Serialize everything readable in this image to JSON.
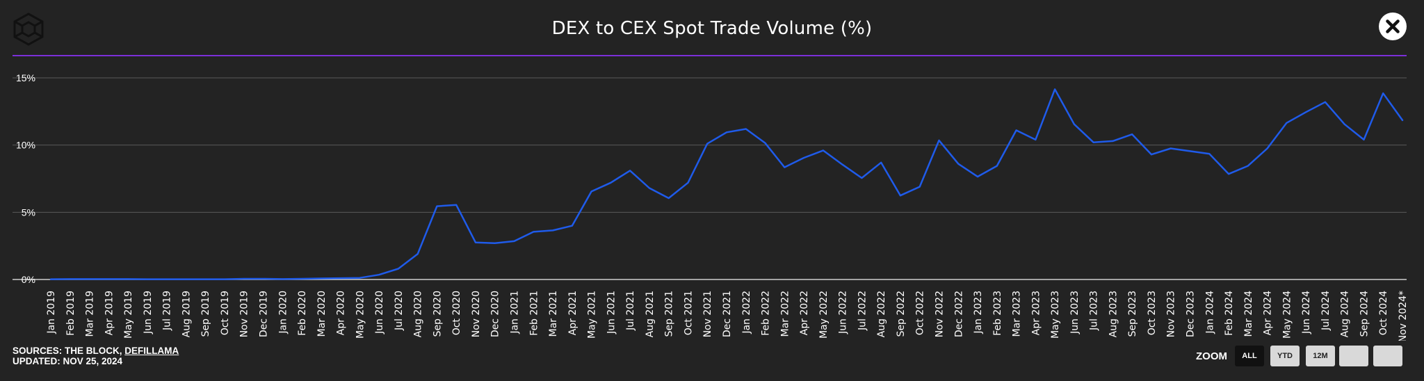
{
  "header": {
    "title": "DEX to CEX Spot Trade Volume (%)"
  },
  "footer": {
    "sources_prefix": "SOURCES: THE BLOCK, ",
    "sources_link": "DEFILLAMA",
    "updated": "UPDATED: NOV 25, 2024"
  },
  "zoom": {
    "label": "ZOOM",
    "buttons": [
      "ALL",
      "YTD",
      "12M",
      "",
      ""
    ],
    "active": "ALL"
  },
  "colors": {
    "background": "#232323",
    "line": "#1f5bea",
    "divider": "#7b2fd9",
    "grid": "#5a5a5a"
  },
  "chart_data": {
    "type": "line",
    "title": "DEX to CEX Spot Trade Volume (%)",
    "ylim": [
      0,
      15
    ],
    "yticks": [
      0,
      5,
      10,
      15
    ],
    "ytick_labels": [
      "0%",
      "5%",
      "10%",
      "15%"
    ],
    "grid": true,
    "categories": [
      "Jan 2019",
      "Feb 2019",
      "Mar 2019",
      "Apr 2019",
      "May 2019",
      "Jun 2019",
      "Jul 2019",
      "Aug 2019",
      "Sep 2019",
      "Oct 2019",
      "Nov 2019",
      "Dec 2019",
      "Jan 2020",
      "Feb 2020",
      "Mar 2020",
      "Apr 2020",
      "May 2020",
      "Jun 2020",
      "Jul 2020",
      "Aug 2020",
      "Sep 2020",
      "Oct 2020",
      "Nov 2020",
      "Dec 2020",
      "Jan 2021",
      "Feb 2021",
      "Mar 2021",
      "Apr 2021",
      "May 2021",
      "Jun 2021",
      "Jul 2021",
      "Aug 2021",
      "Sep 2021",
      "Oct 2021",
      "Nov 2021",
      "Dec 2021",
      "Jan 2022",
      "Feb 2022",
      "Mar 2022",
      "Apr 2022",
      "May 2022",
      "Jun 2022",
      "Jul 2022",
      "Aug 2022",
      "Sep 2022",
      "Oct 2022",
      "Nov 2022",
      "Dec 2022",
      "Jan 2023",
      "Feb 2023",
      "Mar 2023",
      "Apr 2023",
      "May 2023",
      "Jun 2023",
      "Jul 2023",
      "Aug 2023",
      "Sep 2023",
      "Oct 2023",
      "Nov 2023",
      "Dec 2023",
      "Jan 2024",
      "Feb 2024",
      "Mar 2024",
      "Apr 2024",
      "May 2024",
      "Jun 2024",
      "Jul 2024",
      "Aug 2024",
      "Sep 2024",
      "Oct 2024",
      "Nov 2024*"
    ],
    "series": [
      {
        "values": [
          0.02,
          0.03,
          0.03,
          0.03,
          0.03,
          0.02,
          0.02,
          0.02,
          0.02,
          0.02,
          0.05,
          0.05,
          0.03,
          0.05,
          0.08,
          0.1,
          0.12,
          0.35,
          0.8,
          1.9,
          5.45,
          5.55,
          2.75,
          2.7,
          2.85,
          3.55,
          3.65,
          4.0,
          6.55,
          7.2,
          8.1,
          6.8,
          6.05,
          7.2,
          10.1,
          10.95,
          11.2,
          10.15,
          8.35,
          9.05,
          9.6,
          8.55,
          7.55,
          8.7,
          6.25,
          6.9,
          10.35,
          8.6,
          7.65,
          8.45,
          11.1,
          10.4,
          14.15,
          11.55,
          10.2,
          10.3,
          10.8,
          9.3,
          9.75,
          9.55,
          9.35,
          7.85,
          8.45,
          9.75,
          11.65,
          12.45,
          13.2,
          11.55,
          10.4,
          13.85,
          11.85
        ]
      }
    ]
  }
}
